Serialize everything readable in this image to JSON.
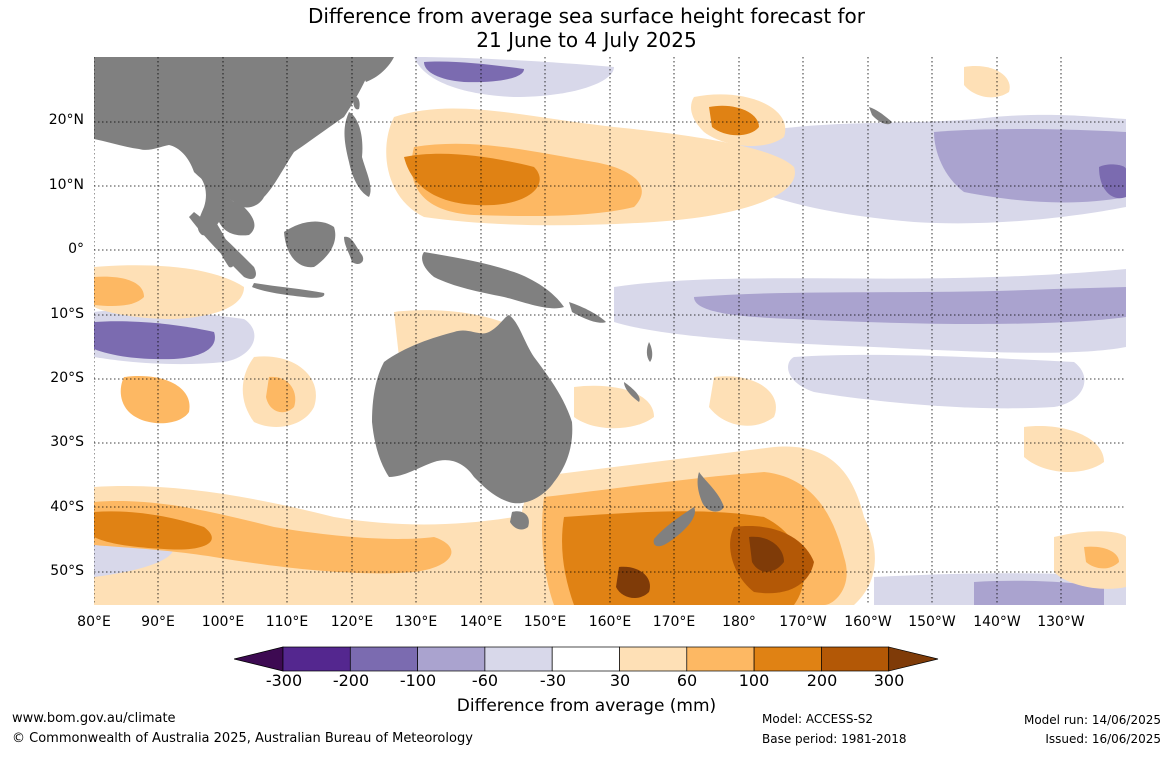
{
  "title": {
    "line1": "Difference from average sea surface height forecast for",
    "line2": "21 June to 4 July 2025"
  },
  "map": {
    "lat_labels": [
      "20°N",
      "10°N",
      "0°",
      "10°S",
      "20°S",
      "30°S",
      "40°S",
      "50°S"
    ],
    "lon_labels": [
      "80°E",
      "90°E",
      "100°E",
      "110°E",
      "120°E",
      "130°E",
      "140°E",
      "150°E",
      "160°E",
      "170°E",
      "180°",
      "170°W",
      "160°W",
      "150°W",
      "140°W",
      "130°W"
    ],
    "land_color": "#808080",
    "ocean_color": "#ffffff"
  },
  "legend": {
    "ticks": [
      "-300",
      "-200",
      "-100",
      "-60",
      "-30",
      "30",
      "60",
      "100",
      "200",
      "300"
    ],
    "colors": [
      "#3d0a52",
      "#54278f",
      "#7b6bb0",
      "#aaa3cf",
      "#d8d8ea",
      "#ffffff",
      "#fee0b6",
      "#fdb863",
      "#e08214",
      "#b35806",
      "#7f3b08"
    ],
    "title": "Difference from average (mm)"
  },
  "footer": {
    "url": "www.bom.gov.au/climate",
    "copyright": "© Commonwealth of Australia 2025, Australian Bureau of Meteorology",
    "model": "Model: ACCESS-S2",
    "base_period": "Base period: 1981-2018",
    "model_run": "Model run: 14/06/2025",
    "issued": "Issued: 16/06/2025"
  }
}
